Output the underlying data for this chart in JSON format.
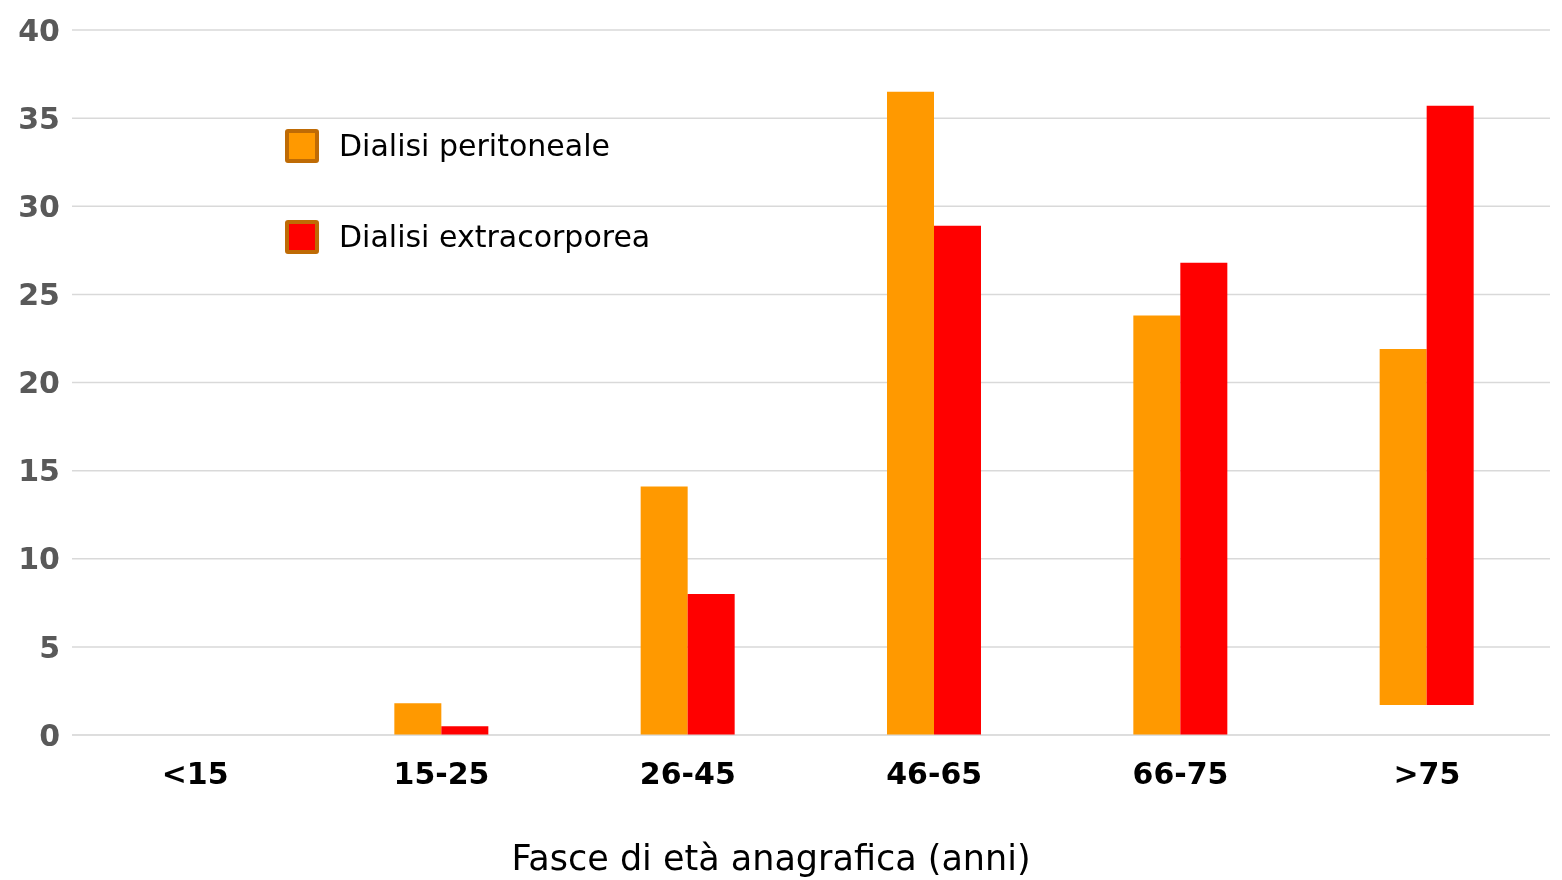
{
  "chart_data": {
    "type": "bar",
    "xlabel": "Fasce di età anagrafica (anni)",
    "categories": [
      "<15",
      "15-25",
      "26-45",
      "46-65",
      "66-75",
      ">75"
    ],
    "series": [
      {
        "name": "Dialisi peritoneale",
        "color": "#ff9900",
        "values": [
          null,
          1.8,
          14.1,
          36.5,
          23.8,
          20.2
        ],
        "base": [
          null,
          0,
          0,
          0,
          0,
          1.7
        ]
      },
      {
        "name": "Dialisi extracorporea",
        "color": "#ff0000",
        "values": [
          null,
          0.5,
          8.0,
          28.9,
          26.8,
          34.0
        ],
        "base": [
          null,
          0,
          0,
          0,
          0,
          1.7
        ]
      }
    ],
    "ylim": [
      0,
      40
    ],
    "yticks": [
      0,
      5,
      10,
      15,
      20,
      25,
      30,
      35,
      40
    ],
    "grid": "y",
    "legend": "top left"
  }
}
